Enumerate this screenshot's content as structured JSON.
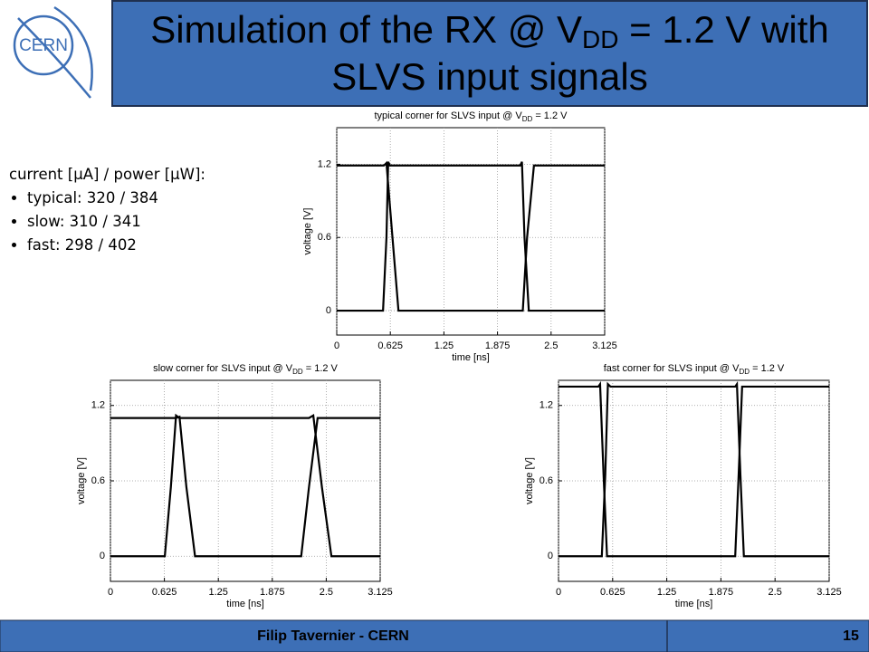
{
  "header": {
    "title_start": "Simulation of the RX @ V",
    "title_sub": "DD",
    "title_end": " = 1.2 V with",
    "title_line2": "SLVS input signals",
    "logo_text": "CERN"
  },
  "notes": {
    "heading": "current [µA] / power [µW]:",
    "items": [
      "typical: 320 / 384",
      "slow: 310 / 341",
      "fast: 298 / 402"
    ]
  },
  "footer": {
    "author": "Filip Tavernier - CERN",
    "page": "15"
  },
  "chart_data": [
    {
      "type": "line",
      "title": "typical corner for SLVS input @ V",
      "title_sub": "DD",
      "title_end": " = 1.2 V",
      "x_label": "time [ns]",
      "y_label": "voltage [V]",
      "xlim": [
        0,
        3.125
      ],
      "ylim": [
        -0.2,
        1.5
      ],
      "xticks": [
        0,
        0.625,
        1.25,
        1.875,
        2.5,
        3.125
      ],
      "yticks": [
        0,
        0.6,
        1.2
      ],
      "grid": true,
      "color": "#000000",
      "series": [
        {
          "x": [
            0,
            0.55,
            0.58,
            0.65,
            0.72,
            2.17,
            2.22,
            2.3,
            3.125
          ],
          "values": [
            1.19,
            1.19,
            1.21,
            0.6,
            0,
            0,
            0.6,
            1.19,
            1.19
          ]
        },
        {
          "x": [
            0,
            0.54,
            0.58,
            0.6,
            0.62,
            2.14,
            2.16,
            2.19,
            2.24,
            3.125
          ],
          "values": [
            0,
            0,
            0.6,
            1.22,
            1.19,
            1.19,
            1.22,
            0.6,
            0,
            0
          ]
        }
      ]
    },
    {
      "type": "line",
      "title": "slow corner for SLVS input @ V",
      "title_sub": "DD",
      "title_end": " = 1.2 V",
      "x_label": "time [ns]",
      "y_label": "voltage [V]",
      "xlim": [
        0,
        3.125
      ],
      "ylim": [
        -0.2,
        1.4
      ],
      "xticks": [
        0,
        0.625,
        1.25,
        1.875,
        2.5,
        3.125
      ],
      "yticks": [
        0,
        0.6,
        1.2
      ],
      "grid": true,
      "color": "#000000",
      "series": [
        {
          "x": [
            0,
            0.76,
            0.8,
            0.88,
            0.98,
            2.21,
            2.3,
            2.4,
            3.125
          ],
          "values": [
            1.1,
            1.1,
            1.11,
            0.55,
            0,
            0,
            0.55,
            1.1,
            1.1
          ]
        },
        {
          "x": [
            0,
            0.63,
            0.7,
            0.76,
            0.8,
            2.3,
            2.35,
            2.45,
            2.56,
            3.125
          ],
          "values": [
            0,
            0,
            0.55,
            1.12,
            1.1,
            1.1,
            1.12,
            0.55,
            0,
            0
          ]
        }
      ]
    },
    {
      "type": "line",
      "title": "fast corner for SLVS input @ V",
      "title_sub": "DD",
      "title_end": " = 1.2 V",
      "x_label": "time [ns]",
      "y_label": "voltage [V]",
      "xlim": [
        0,
        3.125
      ],
      "ylim": [
        -0.2,
        1.4
      ],
      "xticks": [
        0,
        0.625,
        1.25,
        1.875,
        2.5,
        3.125
      ],
      "yticks": [
        0,
        0.6,
        1.2
      ],
      "grid": true,
      "color": "#000000",
      "series": [
        {
          "x": [
            0,
            0.46,
            0.48,
            0.52,
            0.56,
            2.04,
            2.08,
            2.12,
            3.125
          ],
          "values": [
            1.35,
            1.35,
            1.37,
            0.65,
            0,
            0,
            0.65,
            1.35,
            1.35
          ]
        },
        {
          "x": [
            0,
            0.5,
            0.54,
            0.57,
            0.6,
            2.04,
            2.06,
            2.1,
            2.14,
            3.125
          ],
          "values": [
            0,
            0,
            0.65,
            1.37,
            1.35,
            1.35,
            1.37,
            0.65,
            0,
            0
          ]
        }
      ]
    }
  ]
}
